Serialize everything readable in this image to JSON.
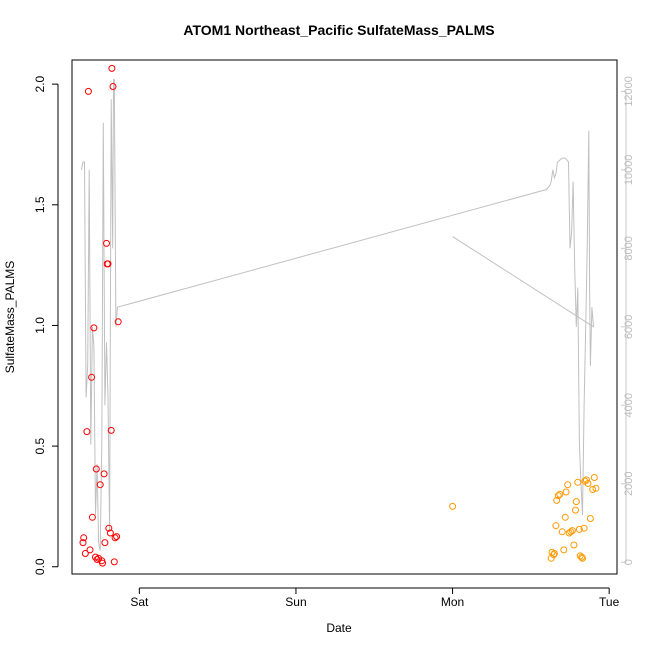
{
  "chart_data": {
    "type": "scatter",
    "title": "ATOM1 Northeast_Pacific SulfateMass_PALMS",
    "xlabel": "Date",
    "ylabel": "SulfateMass_PALMS",
    "x_ticks": [
      "Sat",
      "Sun",
      "Mon",
      "Tue"
    ],
    "x_tick_values": [
      0,
      1,
      2,
      3
    ],
    "xlim": [
      -0.43,
      3.05
    ],
    "ylim": [
      -0.03,
      2.1
    ],
    "y_ticks": [
      "0.0",
      "0.5",
      "1.0",
      "1.5",
      "2.0"
    ],
    "y_tick_values": [
      0,
      0.5,
      1.0,
      1.5,
      2.0
    ],
    "y2lim": [
      -300,
      12800
    ],
    "y2_ticks": [
      "0",
      "2000",
      "4000",
      "6000",
      "8000",
      "10000",
      "12000"
    ],
    "y2_tick_values": [
      0,
      2000,
      4000,
      6000,
      8000,
      10000,
      12000
    ],
    "grid": false,
    "colors": {
      "series1": "#ff0000",
      "series2": "#ff9900",
      "line": "#c0c0c0",
      "axis": "#000000",
      "right_axis": "#c8c8c8"
    },
    "series": [
      {
        "color": "#ff0000",
        "points": [
          [
            -0.36,
            0.1
          ],
          [
            -0.355,
            0.12
          ],
          [
            -0.345,
            0.055
          ],
          [
            -0.335,
            0.56
          ],
          [
            -0.325,
            1.97
          ],
          [
            -0.315,
            0.07
          ],
          [
            -0.305,
            0.785
          ],
          [
            -0.3,
            0.205
          ],
          [
            -0.29,
            0.99
          ],
          [
            -0.28,
            0.04
          ],
          [
            -0.275,
            0.405
          ],
          [
            -0.27,
            0.03
          ],
          [
            -0.26,
            0.035
          ],
          [
            -0.25,
            0.34
          ],
          [
            -0.24,
            0.025
          ],
          [
            -0.235,
            0.015
          ],
          [
            -0.225,
            0.385
          ],
          [
            -0.22,
            0.1
          ],
          [
            -0.21,
            1.34
          ],
          [
            -0.205,
            1.255
          ],
          [
            -0.2,
            1.255
          ],
          [
            -0.195,
            0.16
          ],
          [
            -0.185,
            0.14
          ],
          [
            -0.18,
            0.565
          ],
          [
            -0.175,
            2.065
          ],
          [
            -0.168,
            1.99
          ],
          [
            -0.16,
            0.02
          ],
          [
            -0.155,
            0.12
          ],
          [
            -0.145,
            0.125
          ],
          [
            -0.135,
            1.015
          ]
        ]
      },
      {
        "color": "#ff9900",
        "points": [
          [
            2.0,
            0.25
          ],
          [
            2.63,
            0.035
          ],
          [
            2.635,
            0.06
          ],
          [
            2.645,
            0.05
          ],
          [
            2.65,
            0.055
          ],
          [
            2.66,
            0.17
          ],
          [
            2.665,
            0.275
          ],
          [
            2.675,
            0.295
          ],
          [
            2.685,
            0.3
          ],
          [
            2.7,
            0.145
          ],
          [
            2.71,
            0.07
          ],
          [
            2.72,
            0.205
          ],
          [
            2.725,
            0.31
          ],
          [
            2.735,
            0.34
          ],
          [
            2.745,
            0.14
          ],
          [
            2.755,
            0.145
          ],
          [
            2.765,
            0.15
          ],
          [
            2.775,
            0.09
          ],
          [
            2.785,
            0.235
          ],
          [
            2.79,
            0.27
          ],
          [
            2.8,
            0.35
          ],
          [
            2.81,
            0.155
          ],
          [
            2.815,
            0.045
          ],
          [
            2.825,
            0.04
          ],
          [
            2.83,
            0.035
          ],
          [
            2.84,
            0.16
          ],
          [
            2.845,
            0.355
          ],
          [
            2.855,
            0.36
          ],
          [
            2.865,
            0.345
          ],
          [
            2.88,
            0.2
          ],
          [
            2.895,
            0.32
          ],
          [
            2.905,
            0.37
          ],
          [
            2.915,
            0.325
          ]
        ]
      }
    ],
    "secondary_line": {
      "axis": "right",
      "points": [
        [
          -0.37,
          10000
        ],
        [
          -0.36,
          10200
        ],
        [
          -0.35,
          10200
        ],
        [
          -0.34,
          4200
        ],
        [
          -0.33,
          5000
        ],
        [
          -0.32,
          10000
        ],
        [
          -0.31,
          3000
        ],
        [
          -0.3,
          6000
        ],
        [
          -0.29,
          5500
        ],
        [
          -0.28,
          1200
        ],
        [
          -0.27,
          2500
        ],
        [
          -0.26,
          500
        ],
        [
          -0.25,
          300
        ],
        [
          -0.24,
          3000
        ],
        [
          -0.23,
          11200
        ],
        [
          -0.22,
          4000
        ],
        [
          -0.21,
          5600
        ],
        [
          -0.2,
          4200
        ],
        [
          -0.19,
          800
        ],
        [
          -0.18,
          11800
        ],
        [
          -0.17,
          8000
        ],
        [
          -0.165,
          12300
        ],
        [
          -0.16,
          12300
        ],
        [
          -0.15,
          6000
        ],
        [
          -0.14,
          6500
        ],
        [
          2.6,
          9500
        ],
        [
          2.62,
          9600
        ],
        [
          2.63,
          9700
        ],
        [
          2.64,
          10000
        ],
        [
          2.65,
          9800
        ],
        [
          2.66,
          9900
        ],
        [
          2.67,
          10200
        ],
        [
          2.7,
          10300
        ],
        [
          2.72,
          10300
        ],
        [
          2.74,
          10200
        ],
        [
          2.75,
          8000
        ],
        [
          2.76,
          8400
        ],
        [
          2.77,
          9700
        ],
        [
          2.78,
          7500
        ],
        [
          2.79,
          6000
        ],
        [
          2.8,
          7000
        ],
        [
          2.81,
          3000
        ],
        [
          2.82,
          2000
        ],
        [
          2.83,
          1200
        ],
        [
          2.84,
          4000
        ],
        [
          2.85,
          6000
        ],
        [
          2.86,
          8000
        ],
        [
          2.87,
          11000
        ],
        [
          2.875,
          7000
        ],
        [
          2.88,
          5000
        ],
        [
          2.89,
          6500
        ],
        [
          2.9,
          6000
        ],
        [
          2.0,
          8300
        ],
        [
          2.9,
          6000
        ]
      ]
    }
  }
}
